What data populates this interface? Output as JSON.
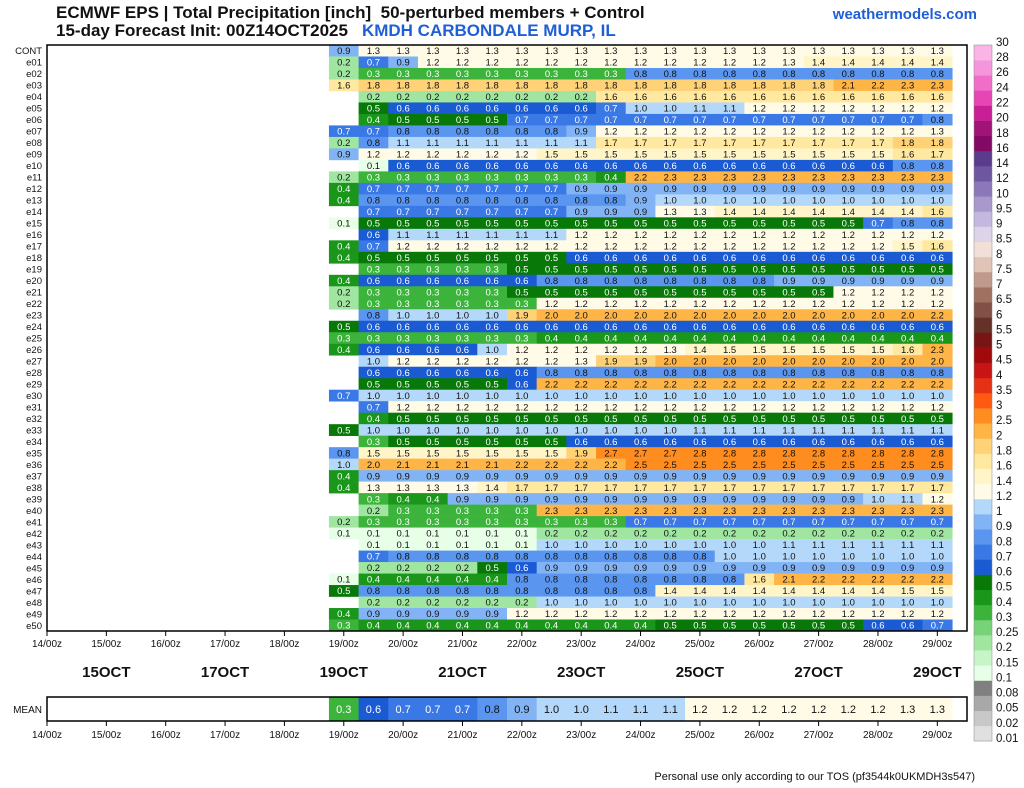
{
  "header": {
    "title_line1": "ECMWF EPS | Total Precipitation [inch]  50-perturbed members + Control",
    "title_line2": "15-day Forecast Init: 00Z14OCT2025",
    "station": "KMDH CARBONDALE MURP, IL",
    "site": "weathermodels.com"
  },
  "footer": "Personal use only according to our TOS (pf3544k0UKMDH3s547)",
  "chart_data": {
    "type": "heatmap",
    "unit": "inch",
    "members": [
      "CONT",
      "e01",
      "e02",
      "e03",
      "e04",
      "e05",
      "e06",
      "e07",
      "e08",
      "e09",
      "e10",
      "e11",
      "e12",
      "e13",
      "e14",
      "e15",
      "e16",
      "e17",
      "e18",
      "e19",
      "e20",
      "e21",
      "e22",
      "e23",
      "e24",
      "e25",
      "e26",
      "e27",
      "e28",
      "e29",
      "e30",
      "e31",
      "e32",
      "e33",
      "e34",
      "e35",
      "e36",
      "e37",
      "e38",
      "e39",
      "e40",
      "e41",
      "e42",
      "e43",
      "e44",
      "e45",
      "e46",
      "e47",
      "e48",
      "e49",
      "e50"
    ],
    "x_tick_labels": [
      "14/00z",
      "15/00z",
      "16/00z",
      "17/00z",
      "18/00z",
      "19/00z",
      "20/00z",
      "21/00z",
      "22/00z",
      "23/00z",
      "24/00z",
      "25/00z",
      "26/00z",
      "27/00z",
      "28/00z",
      "29/00z"
    ],
    "date_labels": [
      "15OCT",
      "17OCT",
      "19OCT",
      "21OCT",
      "23OCT",
      "25OCT",
      "27OCT",
      "29OCT"
    ],
    "time_axis": {
      "start_day": 14,
      "end_day": 29.5
    },
    "first_value_day": 19.0,
    "step_days": 0.5,
    "values_by_member": {
      "CONT": [
        0.9,
        1.3,
        1.3,
        1.3,
        1.3,
        1.3,
        1.3,
        1.3,
        1.3,
        1.3,
        1.3,
        1.3,
        1.3,
        1.3,
        1.3,
        1.3,
        1.3,
        1.3,
        1.3,
        1.3,
        1.3
      ],
      "e01": [
        0.2,
        0.7,
        0.9,
        1.2,
        1.2,
        1.2,
        1.2,
        1.2,
        1.2,
        1.2,
        1.2,
        1.2,
        1.2,
        1.2,
        1.2,
        1.3,
        1.4,
        1.4,
        1.4,
        1.4,
        1.4
      ],
      "e02": [
        0.2,
        0.3,
        0.3,
        0.3,
        0.3,
        0.3,
        0.3,
        0.3,
        0.3,
        0.3,
        0.8,
        0.8,
        0.8,
        0.8,
        0.8,
        0.8,
        0.8,
        0.8,
        0.8,
        0.8,
        0.8
      ],
      "e03": [
        1.6,
        1.8,
        1.8,
        1.8,
        1.8,
        1.8,
        1.8,
        1.8,
        1.8,
        1.8,
        1.8,
        1.8,
        1.8,
        1.8,
        1.8,
        1.8,
        1.8,
        2.1,
        2.2,
        2.3,
        2.3
      ],
      "e04": [
        null,
        0.2,
        0.2,
        0.2,
        0.2,
        0.2,
        0.2,
        0.2,
        0.2,
        1.6,
        1.6,
        1.6,
        1.6,
        1.6,
        1.6,
        1.6,
        1.6,
        1.6,
        1.6,
        1.6,
        1.6
      ],
      "e05": [
        null,
        0.5,
        0.6,
        0.6,
        0.6,
        0.6,
        0.6,
        0.6,
        0.6,
        0.7,
        1.0,
        1.0,
        1.1,
        1.1,
        1.2,
        1.2,
        1.2,
        1.2,
        1.2,
        1.2,
        1.2
      ],
      "e06": [
        null,
        0.4,
        0.5,
        0.5,
        0.5,
        0.5,
        0.7,
        0.7,
        0.7,
        0.7,
        0.7,
        0.7,
        0.7,
        0.7,
        0.7,
        0.7,
        0.7,
        0.7,
        0.7,
        0.7,
        0.8
      ],
      "e07": [
        0.7,
        0.7,
        0.8,
        0.8,
        0.8,
        0.8,
        0.8,
        0.8,
        0.9,
        1.2,
        1.2,
        1.2,
        1.2,
        1.2,
        1.2,
        1.2,
        1.2,
        1.2,
        1.2,
        1.2,
        1.3
      ],
      "e08": [
        0.2,
        0.8,
        1.1,
        1.1,
        1.1,
        1.1,
        1.1,
        1.1,
        1.1,
        1.7,
        1.7,
        1.7,
        1.7,
        1.7,
        1.7,
        1.7,
        1.7,
        1.7,
        1.7,
        1.8,
        1.8
      ],
      "e09": [
        0.9,
        1.2,
        1.2,
        1.2,
        1.2,
        1.2,
        1.2,
        1.5,
        1.5,
        1.5,
        1.5,
        1.5,
        1.5,
        1.5,
        1.5,
        1.5,
        1.5,
        1.5,
        1.5,
        1.6,
        1.7
      ],
      "e10": [
        null,
        0.1,
        0.6,
        0.6,
        0.6,
        0.6,
        0.6,
        0.6,
        0.6,
        0.6,
        0.6,
        0.6,
        0.6,
        0.6,
        0.6,
        0.6,
        0.6,
        0.6,
        0.6,
        0.8,
        0.8
      ],
      "e11": [
        0.2,
        0.3,
        0.3,
        0.3,
        0.3,
        0.3,
        0.3,
        0.3,
        0.3,
        0.4,
        2.2,
        2.3,
        2.3,
        2.3,
        2.3,
        2.3,
        2.3,
        2.3,
        2.3,
        2.3,
        2.3
      ],
      "e12": [
        0.4,
        0.7,
        0.7,
        0.7,
        0.7,
        0.7,
        0.7,
        0.7,
        0.9,
        0.9,
        0.9,
        0.9,
        0.9,
        0.9,
        0.9,
        0.9,
        0.9,
        0.9,
        0.9,
        0.9,
        0.9
      ],
      "e13": [
        0.4,
        0.8,
        0.8,
        0.8,
        0.8,
        0.8,
        0.8,
        0.8,
        0.8,
        0.8,
        0.9,
        1.0,
        1.0,
        1.0,
        1.0,
        1.0,
        1.0,
        1.0,
        1.0,
        1.0,
        1.0
      ],
      "e14": [
        null,
        0.7,
        0.7,
        0.7,
        0.7,
        0.7,
        0.7,
        0.7,
        0.9,
        0.9,
        0.9,
        1.3,
        1.3,
        1.4,
        1.4,
        1.4,
        1.4,
        1.4,
        1.4,
        1.4,
        1.6
      ],
      "e15": [
        0.1,
        0.5,
        0.5,
        0.5,
        0.5,
        0.5,
        0.5,
        0.5,
        0.5,
        0.5,
        0.5,
        0.5,
        0.5,
        0.5,
        0.5,
        0.5,
        0.5,
        0.5,
        0.7,
        0.8,
        0.8
      ],
      "e16": [
        null,
        0.6,
        1.1,
        1.1,
        1.1,
        1.1,
        1.1,
        1.1,
        1.2,
        1.2,
        1.2,
        1.2,
        1.2,
        1.2,
        1.2,
        1.2,
        1.2,
        1.2,
        1.2,
        1.2,
        1.2
      ],
      "e17": [
        0.4,
        0.7,
        1.2,
        1.2,
        1.2,
        1.2,
        1.2,
        1.2,
        1.2,
        1.2,
        1.2,
        1.2,
        1.2,
        1.2,
        1.2,
        1.2,
        1.2,
        1.2,
        1.2,
        1.5,
        1.6
      ],
      "e18": [
        0.4,
        0.5,
        0.5,
        0.5,
        0.5,
        0.5,
        0.5,
        0.5,
        0.6,
        0.6,
        0.6,
        0.6,
        0.6,
        0.6,
        0.6,
        0.6,
        0.6,
        0.6,
        0.6,
        0.6,
        0.6
      ],
      "e19": [
        null,
        0.3,
        0.3,
        0.3,
        0.3,
        0.3,
        0.5,
        0.5,
        0.5,
        0.5,
        0.5,
        0.5,
        0.5,
        0.5,
        0.5,
        0.5,
        0.5,
        0.5,
        0.5,
        0.5,
        0.5
      ],
      "e20": [
        0.4,
        0.6,
        0.6,
        0.6,
        0.6,
        0.6,
        0.6,
        0.8,
        0.8,
        0.8,
        0.8,
        0.8,
        0.8,
        0.8,
        0.8,
        0.9,
        0.9,
        0.9,
        0.9,
        0.9,
        0.9
      ],
      "e21": [
        0.2,
        0.3,
        0.3,
        0.3,
        0.3,
        0.3,
        0.5,
        0.5,
        0.5,
        0.5,
        0.5,
        0.5,
        0.5,
        0.5,
        0.5,
        0.5,
        0.5,
        1.2,
        1.2,
        1.2,
        1.2
      ],
      "e22": [
        0.2,
        0.3,
        0.3,
        0.3,
        0.3,
        0.3,
        0.3,
        1.2,
        1.2,
        1.2,
        1.2,
        1.2,
        1.2,
        1.2,
        1.2,
        1.2,
        1.2,
        1.2,
        1.2,
        1.2,
        1.2
      ],
      "e23": [
        null,
        0.8,
        1.0,
        1.0,
        1.0,
        1.0,
        1.9,
        2.0,
        2.0,
        2.0,
        2.0,
        2.0,
        2.0,
        2.0,
        2.0,
        2.0,
        2.0,
        2.0,
        2.0,
        2.0,
        2.2
      ],
      "e24": [
        0.5,
        0.6,
        0.6,
        0.6,
        0.6,
        0.6,
        0.6,
        0.6,
        0.6,
        0.6,
        0.6,
        0.6,
        0.6,
        0.6,
        0.6,
        0.6,
        0.6,
        0.6,
        0.6,
        0.6,
        0.6
      ],
      "e25": [
        0.3,
        0.3,
        0.3,
        0.3,
        0.3,
        0.3,
        0.3,
        0.4,
        0.4,
        0.4,
        0.4,
        0.4,
        0.4,
        0.4,
        0.4,
        0.4,
        0.4,
        0.4,
        0.4,
        0.4,
        0.4
      ],
      "e26": [
        0.4,
        0.6,
        0.6,
        0.6,
        0.6,
        1.0,
        1.2,
        1.2,
        1.2,
        1.2,
        1.2,
        1.3,
        1.4,
        1.5,
        1.5,
        1.5,
        1.5,
        1.5,
        1.5,
        1.6,
        2.3
      ],
      "e27": [
        null,
        1.0,
        1.2,
        1.2,
        1.2,
        1.2,
        1.2,
        1.2,
        1.3,
        1.9,
        1.9,
        2.0,
        2.0,
        2.0,
        2.0,
        2.0,
        2.0,
        2.0,
        2.0,
        2.0,
        2.0
      ],
      "e28": [
        null,
        0.6,
        0.6,
        0.6,
        0.6,
        0.6,
        0.6,
        0.8,
        0.8,
        0.8,
        0.8,
        0.8,
        0.8,
        0.8,
        0.8,
        0.8,
        0.8,
        0.8,
        0.8,
        0.8,
        0.8
      ],
      "e29": [
        null,
        0.5,
        0.5,
        0.5,
        0.5,
        0.5,
        0.6,
        2.2,
        2.2,
        2.2,
        2.2,
        2.2,
        2.2,
        2.2,
        2.2,
        2.2,
        2.2,
        2.2,
        2.2,
        2.2,
        2.2
      ],
      "e30": [
        0.7,
        1.0,
        1.0,
        1.0,
        1.0,
        1.0,
        1.0,
        1.0,
        1.0,
        1.0,
        1.0,
        1.0,
        1.0,
        1.0,
        1.0,
        1.0,
        1.0,
        1.0,
        1.0,
        1.0,
        1.0
      ],
      "e31": [
        null,
        0.7,
        1.2,
        1.2,
        1.2,
        1.2,
        1.2,
        1.2,
        1.2,
        1.2,
        1.2,
        1.2,
        1.2,
        1.2,
        1.2,
        1.2,
        1.2,
        1.2,
        1.2,
        1.2,
        1.2
      ],
      "e32": [
        null,
        0.4,
        0.5,
        0.5,
        0.5,
        0.5,
        0.5,
        0.5,
        0.5,
        0.5,
        0.5,
        0.5,
        0.5,
        0.5,
        0.5,
        0.5,
        0.5,
        0.5,
        0.5,
        0.5,
        0.5
      ],
      "e33": [
        0.5,
        1.0,
        1.0,
        1.0,
        1.0,
        1.0,
        1.0,
        1.0,
        1.0,
        1.0,
        1.0,
        1.0,
        1.1,
        1.1,
        1.1,
        1.1,
        1.1,
        1.1,
        1.1,
        1.1,
        1.1
      ],
      "e34": [
        null,
        0.3,
        0.5,
        0.5,
        0.5,
        0.5,
        0.5,
        0.5,
        0.6,
        0.6,
        0.6,
        0.6,
        0.6,
        0.6,
        0.6,
        0.6,
        0.6,
        0.6,
        0.6,
        0.6,
        0.6
      ],
      "e35": [
        0.8,
        1.5,
        1.5,
        1.5,
        1.5,
        1.5,
        1.5,
        1.5,
        1.9,
        2.7,
        2.7,
        2.7,
        2.8,
        2.8,
        2.8,
        2.8,
        2.8,
        2.8,
        2.8,
        2.8,
        2.8
      ],
      "e36": [
        1.0,
        2.0,
        2.1,
        2.1,
        2.1,
        2.1,
        2.2,
        2.2,
        2.2,
        2.2,
        2.5,
        2.5,
        2.5,
        2.5,
        2.5,
        2.5,
        2.5,
        2.5,
        2.5,
        2.5,
        2.5
      ],
      "e37": [
        0.4,
        0.9,
        0.9,
        0.9,
        0.9,
        0.9,
        0.9,
        0.9,
        0.9,
        0.9,
        0.9,
        0.9,
        0.9,
        0.9,
        0.9,
        0.9,
        0.9,
        0.9,
        0.9,
        0.9,
        0.9
      ],
      "e38": [
        0.4,
        1.3,
        1.3,
        1.3,
        1.3,
        1.4,
        1.7,
        1.7,
        1.7,
        1.7,
        1.7,
        1.7,
        1.7,
        1.7,
        1.7,
        1.7,
        1.7,
        1.7,
        1.7,
        1.7,
        1.7
      ],
      "e39": [
        null,
        0.3,
        0.4,
        0.4,
        0.9,
        0.9,
        0.9,
        0.9,
        0.9,
        0.9,
        0.9,
        0.9,
        0.9,
        0.9,
        0.9,
        0.9,
        0.9,
        0.9,
        1.0,
        1.1,
        1.2
      ],
      "e40": [
        null,
        0.2,
        0.3,
        0.3,
        0.3,
        0.3,
        0.3,
        2.3,
        2.3,
        2.3,
        2.3,
        2.3,
        2.3,
        2.3,
        2.3,
        2.3,
        2.3,
        2.3,
        2.3,
        2.3,
        2.3
      ],
      "e41": [
        0.2,
        0.3,
        0.3,
        0.3,
        0.3,
        0.3,
        0.3,
        0.3,
        0.3,
        0.3,
        0.7,
        0.7,
        0.7,
        0.7,
        0.7,
        0.7,
        0.7,
        0.7,
        0.7,
        0.7,
        0.7
      ],
      "e42": [
        0.1,
        0.1,
        0.1,
        0.1,
        0.1,
        0.1,
        0.1,
        0.2,
        0.2,
        0.2,
        0.2,
        0.2,
        0.2,
        0.2,
        0.2,
        0.2,
        0.2,
        0.2,
        0.2,
        0.2,
        0.2
      ],
      "e43": [
        null,
        0.1,
        0.1,
        0.1,
        0.1,
        0.1,
        0.1,
        1.0,
        1.0,
        1.0,
        1.0,
        1.0,
        1.0,
        1.0,
        1.0,
        1.1,
        1.1,
        1.1,
        1.1,
        1.1,
        1.1
      ],
      "e44": [
        null,
        0.7,
        0.8,
        0.8,
        0.8,
        0.8,
        0.8,
        0.8,
        0.8,
        0.8,
        0.8,
        0.8,
        0.8,
        1.0,
        1.0,
        1.0,
        1.0,
        1.0,
        1.0,
        1.0,
        1.0
      ],
      "e45": [
        null,
        0.2,
        0.2,
        0.2,
        0.2,
        0.5,
        0.6,
        0.9,
        0.9,
        0.9,
        0.9,
        0.9,
        0.9,
        0.9,
        0.9,
        0.9,
        0.9,
        0.9,
        0.9,
        0.9,
        0.9
      ],
      "e46": [
        0.1,
        0.4,
        0.4,
        0.4,
        0.4,
        0.4,
        0.8,
        0.8,
        0.8,
        0.8,
        0.8,
        0.8,
        0.8,
        0.8,
        1.6,
        2.1,
        2.2,
        2.2,
        2.2,
        2.2,
        2.2
      ],
      "e47": [
        0.5,
        0.8,
        0.8,
        0.8,
        0.8,
        0.8,
        0.8,
        0.8,
        0.8,
        0.8,
        0.8,
        1.4,
        1.4,
        1.4,
        1.4,
        1.4,
        1.4,
        1.4,
        1.4,
        1.5,
        1.5
      ],
      "e48": [
        null,
        0.2,
        0.2,
        0.2,
        0.2,
        0.2,
        0.2,
        1.0,
        1.0,
        1.0,
        1.0,
        1.0,
        1.0,
        1.0,
        1.0,
        1.0,
        1.0,
        1.0,
        1.0,
        1.0,
        1.0
      ],
      "e49": [
        0.4,
        0.9,
        0.9,
        0.9,
        0.9,
        0.9,
        1.2,
        1.2,
        1.2,
        1.2,
        1.2,
        1.2,
        1.2,
        1.2,
        1.2,
        1.2,
        1.2,
        1.2,
        1.2,
        1.2,
        1.2
      ],
      "e50": [
        0.3,
        0.4,
        0.4,
        0.4,
        0.4,
        0.4,
        0.4,
        0.4,
        0.4,
        0.4,
        0.4,
        0.5,
        0.5,
        0.5,
        0.5,
        0.5,
        0.5,
        0.5,
        0.6,
        0.6,
        0.7
      ]
    },
    "mean": {
      "label": "MEAN",
      "values": [
        0.3,
        0.6,
        0.7,
        0.7,
        0.7,
        0.8,
        0.9,
        1.0,
        1.0,
        1.1,
        1.1,
        1.1,
        1.2,
        1.2,
        1.2,
        1.2,
        1.2,
        1.2,
        1.2,
        1.3,
        1.3
      ]
    },
    "colorbar": {
      "levels": [
        0.01,
        0.02,
        0.05,
        0.08,
        0.1,
        0.15,
        0.2,
        0.25,
        0.3,
        0.4,
        0.5,
        0.6,
        0.7,
        0.8,
        0.9,
        1,
        1.2,
        1.4,
        1.6,
        1.8,
        2,
        2.5,
        3,
        3.5,
        4,
        4.5,
        5,
        5.5,
        6,
        6.5,
        7,
        7.5,
        8,
        8.5,
        9,
        9.5,
        10,
        12,
        14,
        16,
        18,
        20,
        22,
        24,
        26,
        28,
        30
      ],
      "tick_labels": [
        "0.01",
        "0.02",
        "0.05",
        "0.08",
        "0.1",
        "0.15",
        "0.2",
        "0.25",
        "0.3",
        "0.4",
        "0.5",
        "0.6",
        "0.7",
        "0.8",
        "0.9",
        "1",
        "1.2",
        "1.4",
        "1.6",
        "1.8",
        "2",
        "2.5",
        "3",
        "3.5",
        "4",
        "4.5",
        "5",
        "5.5",
        "6",
        "6.5",
        "7",
        "7.5",
        "8",
        "8.5",
        "9",
        "9.5",
        "10",
        "12",
        "14",
        "16",
        "18",
        "20",
        "22",
        "24",
        "26",
        "28",
        "30"
      ],
      "colors": [
        "#e0e0e0",
        "#c8c8c8",
        "#a8a8a8",
        "#808080",
        "#e6ffe6",
        "#c8f5c8",
        "#a0e6a0",
        "#78d278",
        "#3cb43c",
        "#1a961a",
        "#087808",
        "#1a5ad2",
        "#3a78e6",
        "#5a96f0",
        "#82b4f5",
        "#b4d8fa",
        "#fffbe6",
        "#fff5c8",
        "#ffe8a0",
        "#ffd278",
        "#ffb446",
        "#ff8c1e",
        "#ff5a14",
        "#e63214",
        "#c81414",
        "#a00a0a",
        "#781414",
        "#643228",
        "#825046",
        "#a07060",
        "#c09a8c",
        "#e0c4b8",
        "#f2e0d8",
        "#ddd4ea",
        "#c4b8e0",
        "#a898cc",
        "#8c78b8",
        "#6e56a0",
        "#5a3c8c",
        "#820a64",
        "#a01478",
        "#c81e96",
        "#e646b4",
        "#f06ec8",
        "#f596dc",
        "#fab4e6"
      ]
    }
  }
}
